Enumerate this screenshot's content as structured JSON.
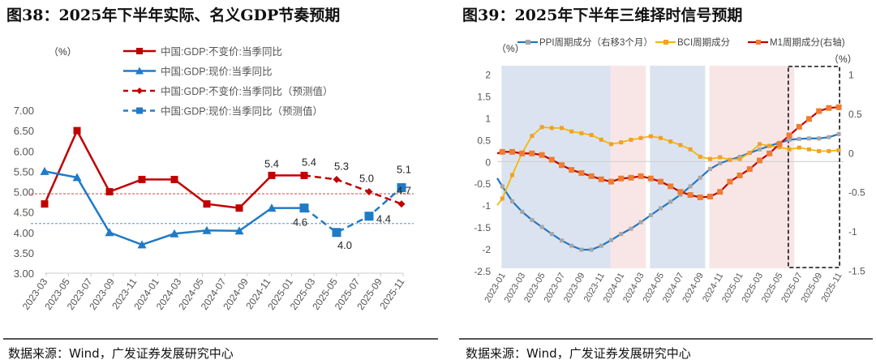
{
  "left": {
    "title": "图38：2025年下半年实际、名义GDP节奏预期",
    "source": "数据来源：Wind，广发证券发展研究中心"
  },
  "right": {
    "title": "图39：2025年下半年三维择时信号预期",
    "source": "数据来源：Wind，广发证券发展研究中心"
  },
  "chart_data": [
    {
      "type": "line",
      "unit_label": "（%）",
      "ylim": [
        3.0,
        7.0
      ],
      "yticks": [
        "3.00",
        "3.50",
        "4.00",
        "4.50",
        "5.00",
        "5.50",
        "6.00",
        "6.50",
        "7.00"
      ],
      "xtick_labels": [
        "2023-03",
        "2023-05",
        "2023-07",
        "2023-09",
        "2023-11",
        "2024-01",
        "2024-03",
        "2024-05",
        "2024-07",
        "2024-09",
        "2024-11",
        "2025-01",
        "2025-03",
        "2025-05",
        "2025-07",
        "2025-09",
        "2025-11"
      ],
      "x": [
        "2023Q1",
        "2023Q2",
        "2023Q3",
        "2023Q4",
        "2024Q1",
        "2024Q2",
        "2024Q3",
        "2024Q4",
        "2025Q1",
        "2025Q2",
        "2025Q3",
        "2025Q4"
      ],
      "series": [
        {
          "name": "中国:GDP:不变价:当季同比",
          "color": "#C00000",
          "style": "solid",
          "marker": "square",
          "values": [
            4.7,
            6.5,
            5.0,
            5.3,
            5.3,
            4.7,
            4.6,
            5.4,
            5.4,
            null,
            null,
            null
          ]
        },
        {
          "name": "中国:GDP:现价:当季同比",
          "color": "#1F7BC6",
          "style": "solid",
          "marker": "triangle",
          "values": [
            5.5,
            5.35,
            4.0,
            3.7,
            3.97,
            4.05,
            4.04,
            4.6,
            4.6,
            null,
            null,
            null
          ]
        },
        {
          "name": "中国:GDP:不变价:当季同比（预测值）",
          "color": "#C00000",
          "style": "dashed",
          "marker": "diamond",
          "values": [
            null,
            null,
            null,
            null,
            null,
            null,
            null,
            null,
            5.4,
            5.3,
            5.0,
            4.7
          ]
        },
        {
          "name": "中国:GDP:现价:当季同比（预测值）",
          "color": "#1F7BC6",
          "style": "dashed",
          "marker": "square",
          "values": [
            null,
            null,
            null,
            null,
            null,
            null,
            null,
            null,
            4.6,
            4.0,
            4.4,
            5.1
          ]
        }
      ],
      "reference_lines": [
        {
          "value": 4.95,
          "color": "#E04040"
        },
        {
          "value": 4.22,
          "color": "#5B8FE0"
        }
      ],
      "data_labels": [
        {
          "series": 0,
          "index": 7,
          "text": "5.4"
        },
        {
          "series": 2,
          "index": 8,
          "text": "5.4"
        },
        {
          "series": 2,
          "index": 9,
          "text": "5.3"
        },
        {
          "series": 2,
          "index": 10,
          "text": "5.0"
        },
        {
          "series": 2,
          "index": 11,
          "text": "4.7"
        },
        {
          "series": 3,
          "index": 8,
          "text": "4.6"
        },
        {
          "series": 3,
          "index": 9,
          "text": "4.0"
        },
        {
          "series": 3,
          "index": 10,
          "text": "4.4"
        },
        {
          "series": 3,
          "index": 11,
          "text": "5.1"
        }
      ],
      "legend": "top"
    },
    {
      "type": "line",
      "unit_label_left": "（%）",
      "unit_label_right": "（%）",
      "ylim_left": [
        -2.5,
        2
      ],
      "ylim_right": [
        -1.5,
        1
      ],
      "yticks_left": [
        "-2.5",
        "-2",
        "-1.5",
        "-1",
        "-0.5",
        "0",
        "0.5",
        "1",
        "1.5",
        "2"
      ],
      "yticks_right": [
        "-1.5",
        "-1",
        "-0.5",
        "0",
        "0.5",
        "1"
      ],
      "xtick_labels": [
        "2023-01",
        "2023-03",
        "2023-05",
        "2023-07",
        "2023-09",
        "2023-11",
        "2024-01",
        "2024-03",
        "2024-05",
        "2024-07",
        "2024-09",
        "2024-11",
        "2025-01",
        "2025-03",
        "2025-05",
        "2025-07",
        "2025-09",
        "2025-11"
      ],
      "x_start": "2023-01",
      "x_end": "2025-11",
      "series": [
        {
          "name": "PPI周期成分（右移3个月）",
          "axis": "left",
          "color": "#1F77C8",
          "marker_color": "#A6A6A6",
          "values": [
            -0.57,
            -0.91,
            -1.15,
            -1.34,
            -1.5,
            -1.66,
            -1.81,
            -1.93,
            -2.02,
            -2.02,
            -1.93,
            -1.8,
            -1.66,
            -1.54,
            -1.39,
            -1.23,
            -1.07,
            -0.92,
            -0.76,
            -0.57,
            -0.37,
            -0.17,
            -0.04,
            0.04,
            0.11,
            0.2,
            0.28,
            0.36,
            0.43,
            0.5,
            0.52,
            0.53,
            0.53,
            0.56,
            0.63
          ]
        },
        {
          "name": "BCI周期成分",
          "axis": "left",
          "color": "#F5B800",
          "marker_color": "#F0A030",
          "values": [
            -0.85,
            -0.31,
            0.2,
            0.59,
            0.79,
            0.77,
            0.77,
            0.69,
            0.65,
            0.61,
            0.5,
            0.4,
            0.44,
            0.5,
            0.54,
            0.58,
            0.54,
            0.46,
            0.38,
            0.28,
            0.11,
            0.06,
            0.1,
            0.04,
            0.06,
            0.2,
            0.4,
            0.36,
            0.33,
            0.28,
            0.32,
            0.28,
            0.24,
            0.24,
            0.26
          ]
        },
        {
          "name": "M1周期成分(右轴)",
          "axis": "right",
          "color": "#C00000",
          "marker_color": "#ED7D31",
          "values": [
            0.01,
            0.01,
            -0.01,
            -0.01,
            -0.03,
            -0.09,
            -0.16,
            -0.22,
            -0.26,
            -0.3,
            -0.34,
            -0.37,
            -0.33,
            -0.32,
            -0.3,
            -0.33,
            -0.37,
            -0.43,
            -0.5,
            -0.54,
            -0.57,
            -0.56,
            -0.5,
            -0.37,
            -0.29,
            -0.21,
            -0.1,
            -0.01,
            0.11,
            0.22,
            0.33,
            0.43,
            0.53,
            0.57,
            0.58
          ]
        }
      ],
      "shaded_periods": [
        {
          "from": "2023-01",
          "to": "2023-12",
          "color": "#DCE3F0"
        },
        {
          "from": "2023-12",
          "to": "2024-03",
          "color": "#F8E6E7"
        },
        {
          "from": "2024-04",
          "to": "2024-09",
          "color": "#DCE3F0"
        },
        {
          "from": "2024-10",
          "to": "2025-06",
          "color": "#F8E6E7"
        }
      ],
      "forecast_box": {
        "from": "2025-06",
        "to": "2025-11"
      },
      "legend": "top"
    }
  ]
}
